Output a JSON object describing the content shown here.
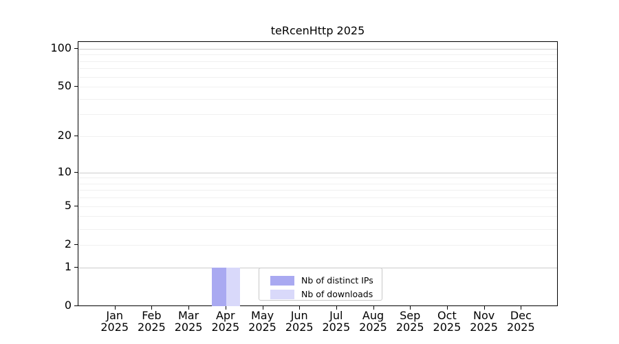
{
  "chart_data": {
    "type": "bar",
    "title": "teRcenHttp 2025",
    "year": "2025",
    "categories": [
      "Jan",
      "Feb",
      "Mar",
      "Apr",
      "May",
      "Jun",
      "Jul",
      "Aug",
      "Sep",
      "Oct",
      "Nov",
      "Dec"
    ],
    "series": [
      {
        "name": "Nb of distinct IPs",
        "color": "#a9a9f1",
        "values": [
          0,
          0,
          0,
          1,
          0,
          0,
          0,
          0,
          0,
          0,
          0,
          0
        ]
      },
      {
        "name": "Nb of downloads",
        "color": "#d9d9fa",
        "values": [
          0,
          0,
          0,
          1,
          0,
          0,
          0,
          0,
          0,
          0,
          0,
          0
        ]
      }
    ],
    "y_axis": {
      "scale": "log1p",
      "tick_values": [
        0,
        1,
        2,
        5,
        10,
        20,
        50,
        100
      ],
      "tick_labels": [
        "0",
        "1",
        "2",
        "5",
        "10",
        "20",
        "50",
        "100"
      ],
      "major_gridlines": [
        1,
        10,
        100
      ],
      "minor_gridlines": [
        2,
        3,
        4,
        5,
        6,
        7,
        8,
        9,
        20,
        30,
        40,
        50,
        60,
        70,
        80,
        90
      ],
      "ylim": [
        0,
        114
      ]
    },
    "legend": {
      "position": "lower center"
    },
    "colors": {
      "grid_major": "#cccccc",
      "grid_minor": "#f0f0f0",
      "spine": "#000000",
      "background": "#ffffff"
    }
  }
}
